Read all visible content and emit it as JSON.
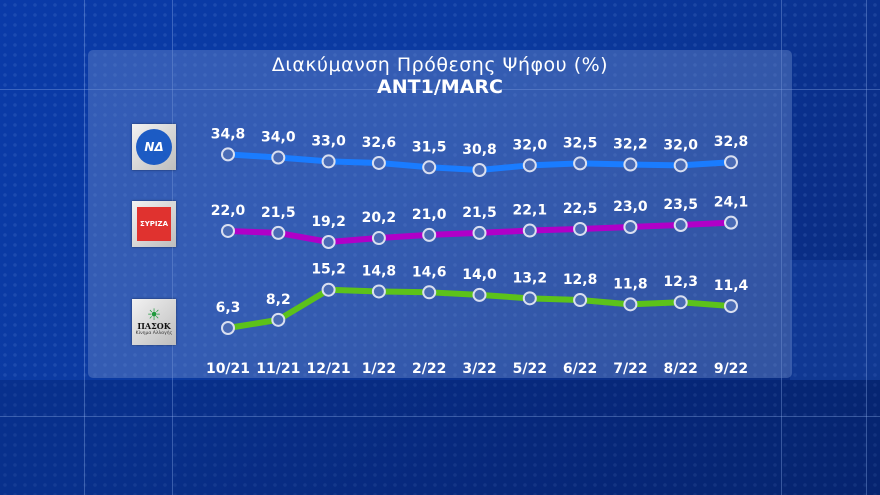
{
  "header": {
    "title": "Διακύμανση Πρόθεσης Ψήφου (%)",
    "subtitle": "ANT1/MARC"
  },
  "parties": [
    {
      "name": "ΝΔ",
      "logo_text": "ΝΔ",
      "color": "#1a7cff",
      "logo_icon": "nd-logo-icon"
    },
    {
      "name": "ΣΥΡΙΖΑ",
      "logo_text": "ΣΥΡΙΖΑ",
      "color": "#b000c8",
      "logo_icon": "syriza-logo-icon"
    },
    {
      "name": "ΠΑΣΟΚ",
      "logo_text": "ΠΑΣΟΚ",
      "logo_subtext": "Κίνημα Αλλαγής",
      "color": "#5cc21a",
      "logo_icon": "pasok-logo-icon"
    }
  ],
  "chart_data": {
    "type": "line",
    "title": "Διακύμανση Πρόθεσης Ψήφου (%)",
    "subtitle": "ANT1/MARC",
    "xlabel": "",
    "ylabel": "%",
    "categories": [
      "10/21",
      "11/21",
      "12/21",
      "1/22",
      "2/22",
      "3/22",
      "5/22",
      "6/22",
      "7/22",
      "8/22",
      "9/22"
    ],
    "series": [
      {
        "name": "ΝΔ",
        "color": "#1a7cff",
        "values": [
          34.8,
          34.0,
          33.0,
          32.6,
          31.5,
          30.8,
          32.0,
          32.5,
          32.2,
          32.0,
          32.8
        ],
        "labels": [
          "34,8",
          "34,0",
          "33,0",
          "32,6",
          "31,5",
          "30,8",
          "32,0",
          "32,5",
          "32,2",
          "32,0",
          "32,8"
        ]
      },
      {
        "name": "ΣΥΡΙΖΑ",
        "color": "#b000c8",
        "values": [
          22.0,
          21.5,
          19.2,
          20.2,
          21.0,
          21.5,
          22.1,
          22.5,
          23.0,
          23.5,
          24.1
        ],
        "labels": [
          "22,0",
          "21,5",
          "19,2",
          "20,2",
          "21,0",
          "21,5",
          "22,1",
          "22,5",
          "23,0",
          "23,5",
          "24,1"
        ]
      },
      {
        "name": "ΠΑΣΟΚ",
        "color": "#5cc21a",
        "values": [
          6.3,
          8.2,
          15.2,
          14.8,
          14.6,
          14.0,
          13.2,
          12.8,
          11.8,
          12.3,
          11.4
        ],
        "labels": [
          "6,3",
          "8,2",
          "15,2",
          "14,8",
          "14,6",
          "14,0",
          "13,2",
          "12,8",
          "11,8",
          "12,3",
          "11,4"
        ]
      }
    ],
    "grid": false,
    "legend": "left-logos"
  }
}
